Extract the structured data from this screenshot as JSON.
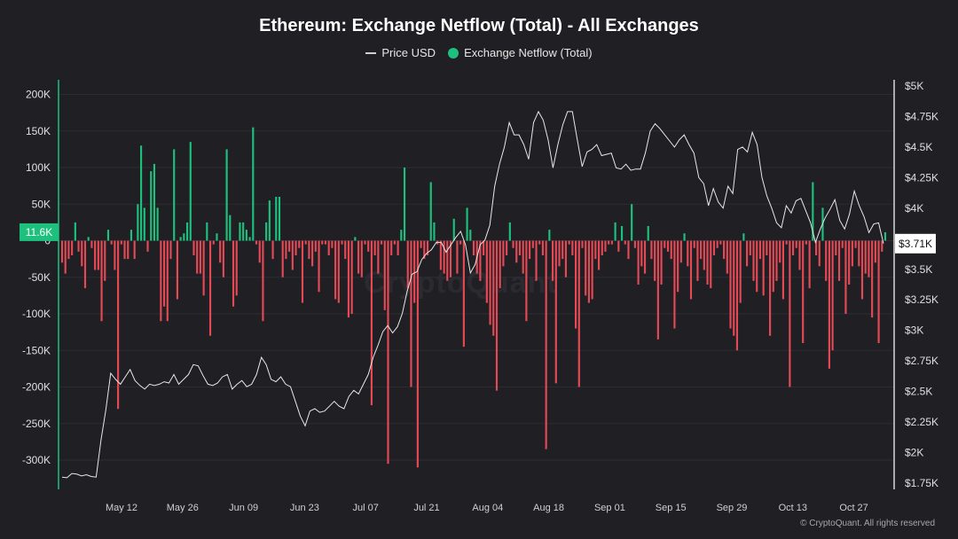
{
  "chart_data": {
    "type": "bar",
    "title": "Ethereum: Exchange Netflow (Total) - All Exchanges",
    "legend": [
      {
        "name": "Price USD",
        "kind": "line",
        "color": "#d0d0d0"
      },
      {
        "name": "Exchange Netflow (Total)",
        "kind": "dot",
        "color": "#1ec07e"
      }
    ],
    "legend_position": "top-center",
    "x_ticks": [
      "May 12",
      "May 26",
      "Jun 09",
      "Jun 23",
      "Jul 07",
      "Jul 21",
      "Aug 04",
      "Aug 18",
      "Sep 01",
      "Sep 15",
      "Sep 29",
      "Oct 13",
      "Oct 27"
    ],
    "y_left": {
      "range": [
        -340000,
        220000
      ],
      "ticks": [
        200000,
        150000,
        100000,
        50000,
        0,
        -50000,
        -100000,
        -150000,
        -200000,
        -250000,
        -300000
      ],
      "tick_labels": [
        "200K",
        "150K",
        "100K",
        "50K",
        "0",
        "-50K",
        "-100K",
        "-150K",
        "-200K",
        "-250K",
        "-300K"
      ]
    },
    "y_right": {
      "range": [
        1700,
        5050
      ],
      "ticks": [
        5000,
        4750,
        4500,
        4250,
        4000,
        3500,
        3250,
        3000,
        2750,
        2500,
        2250,
        2000,
        1750
      ],
      "tick_labels": [
        "$5K",
        "$4.75K",
        "$4.5K",
        "$4.25K",
        "$4K",
        "$3.5K",
        "$3.25K",
        "$3K",
        "$2.75K",
        "$2.5K",
        "$2.25K",
        "$2K",
        "$1.75K"
      ]
    },
    "current_netflow_label": "11.6K",
    "current_price_label": "$3.71K",
    "netflow_series": {
      "name": "Exchange Netflow (Total)",
      "positive_color": "#1ec07e",
      "negative_color": "#e34a55",
      "values": [
        -30000,
        -45000,
        -25000,
        -20000,
        25000,
        -15000,
        -35000,
        -65000,
        5000,
        -10000,
        -40000,
        -40000,
        -110000,
        -55000,
        15000,
        -5000,
        -40000,
        -230000,
        -5000,
        -25000,
        -25000,
        15000,
        -25000,
        50000,
        130000,
        45000,
        -15000,
        95000,
        105000,
        45000,
        -110000,
        -90000,
        -110000,
        -25000,
        125000,
        -80000,
        5000,
        10000,
        25000,
        135000,
        -20000,
        -45000,
        -45000,
        -75000,
        25000,
        -130000,
        -5000,
        10000,
        -30000,
        -50000,
        125000,
        35000,
        -90000,
        -75000,
        25000,
        25000,
        15000,
        5000,
        155000,
        -5000,
        -30000,
        -110000,
        25000,
        55000,
        -25000,
        60000,
        60000,
        -50000,
        -25000,
        -15000,
        -40000,
        -20000,
        -10000,
        -85000,
        -5000,
        -25000,
        -35000,
        -15000,
        -70000,
        -5000,
        -5000,
        -20000,
        -10000,
        -80000,
        -85000,
        -5000,
        -25000,
        -105000,
        -100000,
        5000,
        -45000,
        -50000,
        -5000,
        -15000,
        -225000,
        -20000,
        -45000,
        -5000,
        -95000,
        -305000,
        -20000,
        -5000,
        -20000,
        15000,
        100000,
        -65000,
        -200000,
        -85000,
        -310000,
        -10000,
        -25000,
        -20000,
        80000,
        25000,
        -5000,
        -40000,
        -45000,
        -55000,
        -50000,
        30000,
        -45000,
        -5000,
        -145000,
        45000,
        15000,
        -20000,
        -45000,
        -55000,
        -20000,
        -85000,
        -115000,
        -130000,
        -205000,
        -65000,
        -35000,
        -20000,
        25000,
        -10000,
        -30000,
        -20000,
        -45000,
        -110000,
        -25000,
        -10000,
        -55000,
        -5000,
        -20000,
        -285000,
        15000,
        -55000,
        -195000,
        -35000,
        -25000,
        -50000,
        -5000,
        -20000,
        -120000,
        -200000,
        -10000,
        -75000,
        -85000,
        -80000,
        -25000,
        -40000,
        -20000,
        -15000,
        -5000,
        -5000,
        25000,
        -15000,
        20000,
        -5000,
        -25000,
        50000,
        -10000,
        -60000,
        -35000,
        -45000,
        20000,
        -25000,
        -55000,
        -135000,
        -60000,
        -10000,
        -15000,
        -25000,
        -120000,
        -70000,
        -30000,
        10000,
        -35000,
        -80000,
        -10000,
        -55000,
        -25000,
        -40000,
        -60000,
        -65000,
        -20000,
        -10000,
        -5000,
        -25000,
        -45000,
        -120000,
        -130000,
        -150000,
        -85000,
        10000,
        -35000,
        -20000,
        -55000,
        -70000,
        -25000,
        -75000,
        -20000,
        -130000,
        -70000,
        -55000,
        -30000,
        -80000,
        -5000,
        -200000,
        -20000,
        -10000,
        -40000,
        -140000,
        -5000,
        -65000,
        80000,
        -20000,
        -35000,
        45000,
        -55000,
        -175000,
        -150000,
        -20000,
        -55000,
        -10000,
        -100000,
        -60000,
        -35000,
        -10000,
        -35000,
        -80000,
        -45000,
        -50000,
        -105000,
        -30000,
        -140000,
        -15000,
        11600
      ]
    },
    "price_series": {
      "name": "Price USD",
      "values": [
        1800,
        1795,
        1830,
        1825,
        1810,
        1820,
        1805,
        1800,
        2100,
        2350,
        2650,
        2600,
        2560,
        2620,
        2680,
        2590,
        2550,
        2520,
        2560,
        2550,
        2560,
        2580,
        2570,
        2640,
        2560,
        2600,
        2640,
        2720,
        2710,
        2630,
        2560,
        2550,
        2570,
        2620,
        2640,
        2520,
        2560,
        2590,
        2540,
        2560,
        2640,
        2780,
        2720,
        2600,
        2580,
        2620,
        2560,
        2540,
        2420,
        2300,
        2220,
        2340,
        2360,
        2330,
        2340,
        2380,
        2420,
        2380,
        2360,
        2460,
        2510,
        2480,
        2560,
        2640,
        2780,
        2880,
        2990,
        3040,
        2980,
        3030,
        3140,
        3320,
        3460,
        3480,
        3580,
        3630,
        3660,
        3720,
        3720,
        3640,
        3700,
        3760,
        3810,
        3700,
        3470,
        3540,
        3700,
        3740,
        3860,
        4180,
        4360,
        4500,
        4700,
        4600,
        4600,
        4520,
        4400,
        4700,
        4790,
        4720,
        4560,
        4330,
        4520,
        4680,
        4790,
        4790,
        4560,
        4340,
        4460,
        4480,
        4520,
        4430,
        4440,
        4450,
        4330,
        4320,
        4360,
        4310,
        4320,
        4320,
        4450,
        4630,
        4690,
        4650,
        4600,
        4550,
        4500,
        4560,
        4600,
        4520,
        4450,
        4250,
        4200,
        4020,
        4160,
        4050,
        4000,
        4180,
        4120,
        4480,
        4500,
        4460,
        4620,
        4520,
        4250,
        4100,
        4000,
        3880,
        3840,
        4020,
        3960,
        4060,
        4080,
        3980,
        3880,
        3720,
        3830,
        3920,
        3990,
        4070,
        3900,
        3830,
        3950,
        4140,
        4020,
        3930,
        3800,
        3870,
        3880,
        3710
      ]
    }
  },
  "footer": {
    "copyright": "© CryptoQuant. All rights reserved"
  },
  "watermark": {
    "text": "CryptoQuant"
  }
}
